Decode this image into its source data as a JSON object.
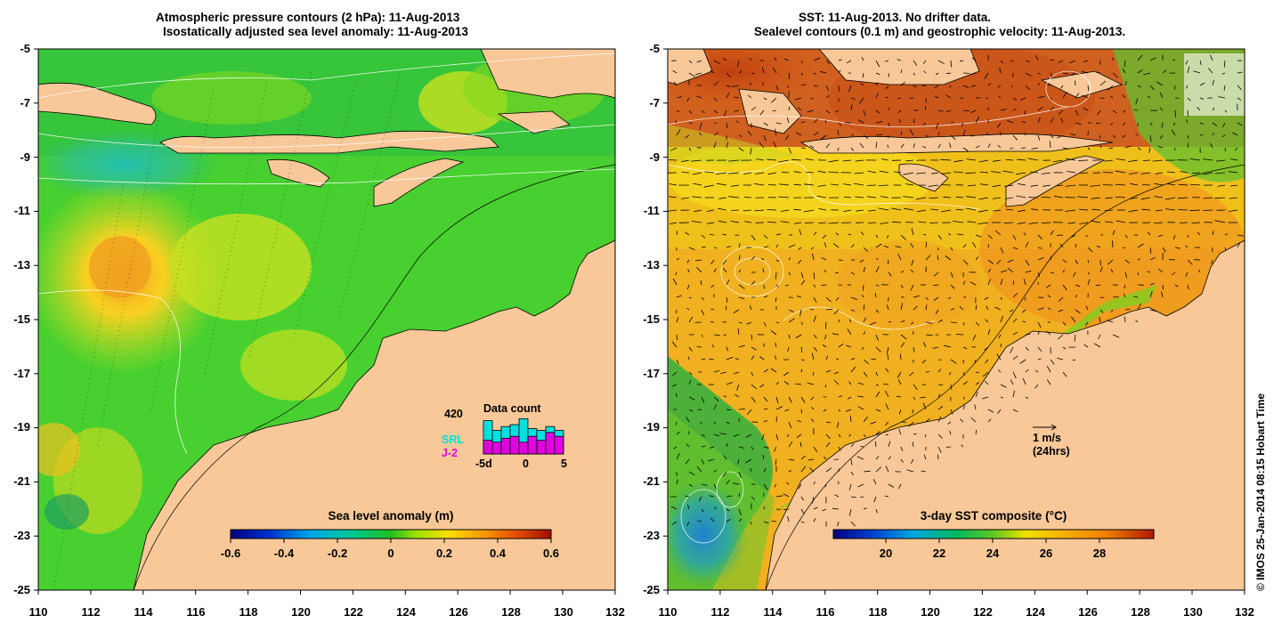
{
  "left_panel": {
    "title_line1": "Atmospheric pressure contours (2 hPa): 11-Aug-2013",
    "title_line2": "Isostatically adjusted sea level anomaly: 11-Aug-2013",
    "colorbar_title": "Sea level anomaly (m)",
    "colorbar_ticks": [
      "-0.6",
      "-0.4",
      "-0.2",
      "0",
      "0.2",
      "0.4",
      "0.6"
    ],
    "colorbar_colors": [
      "#00007f",
      "#0030d0",
      "#00a0e0",
      "#00c8a0",
      "#10b840",
      "#60d820",
      "#c8e000",
      "#f8d000",
      "#f89000",
      "#e85000",
      "#a01000"
    ],
    "data_count": {
      "title": "Data count",
      "max_label": "420",
      "series": [
        "SRL",
        "J-2"
      ],
      "series_colors": [
        "#00e0e0",
        "#e000e0"
      ],
      "axis_labels": [
        "-5d",
        "0",
        "5"
      ],
      "srl_fraction": [
        0.85,
        0.6,
        0.7,
        0.75,
        0.9,
        0.65,
        0.6,
        0.7,
        0.6
      ],
      "j2_fraction": [
        0.35,
        0.3,
        0.4,
        0.45,
        0.3,
        0.45,
        0.35,
        0.55,
        0.45
      ]
    }
  },
  "right_panel": {
    "title_line1": "SST: 11-Aug-2013. No drifter data.",
    "title_line2": "Sealevel contours (0.1 m) and geostrophic velocity: 11-Aug-2013.",
    "colorbar_title": "3-day SST composite (°C)",
    "colorbar_ticks": [
      "20",
      "22",
      "24",
      "26",
      "28"
    ],
    "colorbar_colors": [
      "#00007f",
      "#0040d0",
      "#00a0e0",
      "#00c080",
      "#20b020",
      "#90d010",
      "#f0e000",
      "#f8b800",
      "#f09000",
      "#e06000",
      "#b01800"
    ],
    "velocity_scale_line1": "1 m/s",
    "velocity_scale_line2": "(24hrs)"
  },
  "axes": {
    "y_ticks": [
      "-5",
      "-7",
      "-9",
      "-11",
      "-13",
      "-15",
      "-17",
      "-19",
      "-21",
      "-23",
      "-25"
    ],
    "x_ticks": [
      "110",
      "112",
      "114",
      "116",
      "118",
      "120",
      "122",
      "124",
      "126",
      "128",
      "130",
      "132"
    ]
  },
  "copyright": "© IMOS 25-Jan-2014 08:15 Hobart Time",
  "colors": {
    "land": "#f8c898"
  }
}
